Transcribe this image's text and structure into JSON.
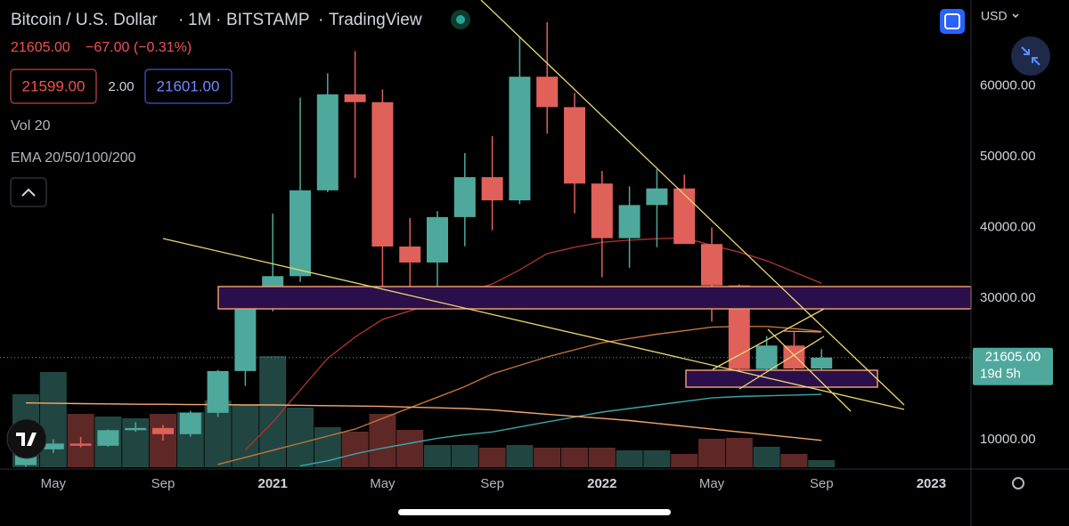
{
  "header": {
    "symbol": "Bitcoin / U.S. Dollar",
    "interval": "1M",
    "exchange": "BITSTAMP",
    "source": "TradingView",
    "price": "21605.00",
    "change": "−67.00 (−0.31%)",
    "bid": "21599.00",
    "spread": "2.00",
    "ask": "21601.00",
    "volume_legend": "Vol 20",
    "ema_legend": "EMA 20/50/100/200",
    "currency": "USD"
  },
  "chart_data": {
    "type": "candlestick",
    "categories": [
      null,
      "May",
      null,
      null,
      null,
      "Sep",
      null,
      null,
      null,
      "2021",
      null,
      null,
      null,
      "May",
      null,
      null,
      null,
      "Sep",
      null,
      null,
      null,
      "2022",
      null,
      null,
      null,
      "May",
      null,
      null,
      null,
      "Sep",
      null,
      null,
      null,
      "2023"
    ],
    "open": [
      6400,
      8630,
      9450,
      9140,
      11340,
      11650,
      10780,
      13790,
      19700,
      28990,
      33110,
      45240,
      58800,
      57700,
      37300,
      35040,
      41460,
      47100,
      43820,
      61300,
      57000,
      46200,
      38480,
      43160,
      45510,
      37650,
      31800,
      19980,
      23300,
      20050,
      null,
      null,
      null,
      null
    ],
    "high": [
      9460,
      10060,
      10380,
      11430,
      12470,
      12070,
      14100,
      19860,
      29300,
      41950,
      58350,
      61780,
      64900,
      59500,
      41330,
      42300,
      50500,
      52900,
      67000,
      69000,
      59000,
      47990,
      45800,
      48200,
      47450,
      40000,
      31950,
      24650,
      25200,
      22800,
      null,
      null,
      null,
      null
    ],
    "low": [
      6150,
      8120,
      8900,
      8980,
      11130,
      9880,
      10420,
      13230,
      17600,
      28130,
      32300,
      45000,
      47000,
      30000,
      28800,
      29280,
      37330,
      39600,
      43300,
      53250,
      42000,
      32950,
      34300,
      37200,
      37700,
      26700,
      17600,
      18800,
      19600,
      18500,
      null,
      null,
      null,
      null
    ],
    "close": [
      8630,
      9450,
      9140,
      11340,
      11650,
      10780,
      13790,
      19700,
      28990,
      33110,
      45240,
      58800,
      57700,
      37300,
      35040,
      41460,
      47100,
      43820,
      61300,
      57000,
      46200,
      38480,
      43160,
      45510,
      37650,
      31800,
      19980,
      23300,
      20050,
      21605,
      null,
      null,
      null,
      null
    ],
    "volume": [
      328000,
      428000,
      240000,
      228000,
      220000,
      240000,
      248000,
      300000,
      280000,
      500000,
      268000,
      180000,
      160000,
      240000,
      168000,
      100000,
      100000,
      88000,
      100000,
      88000,
      88000,
      88000,
      76000,
      76000,
      60000,
      128000,
      132000,
      92000,
      60000,
      32000,
      null,
      null,
      null,
      null
    ],
    "volume_lim": [
      0,
      660000
    ],
    "up_color": "#4fa89c",
    "down_color": "#e0605a",
    "ema": [
      {
        "color": "#a8322e",
        "values": [
          null,
          null,
          null,
          null,
          null,
          null,
          null,
          null,
          8500,
          12500,
          17000,
          21500,
          24500,
          27000,
          28200,
          29500,
          30800,
          32000,
          34000,
          36300,
          37200,
          37900,
          38200,
          38400,
          38500,
          37500,
          36500,
          35300,
          33700,
          32100,
          null,
          null,
          null,
          null
        ]
      },
      {
        "color": "#c4743c",
        "values": [
          null,
          null,
          null,
          null,
          null,
          null,
          null,
          6500,
          7500,
          8500,
          9500,
          10500,
          11500,
          13000,
          14500,
          16000,
          17500,
          19300,
          20500,
          21700,
          22700,
          23700,
          24300,
          24900,
          25400,
          25900,
          26000,
          26000,
          25700,
          25300,
          null,
          null,
          null,
          null
        ]
      },
      {
        "color": "#3aa7a8",
        "values": [
          null,
          null,
          null,
          null,
          null,
          null,
          null,
          null,
          null,
          null,
          6300,
          7000,
          8000,
          8800,
          9500,
          10200,
          10700,
          11100,
          11800,
          12500,
          13200,
          13900,
          14400,
          14900,
          15400,
          15900,
          16100,
          16200,
          16300,
          16400,
          null,
          null,
          null,
          null
        ]
      },
      {
        "color": "#f6a86a",
        "values": [
          15200,
          15150,
          15100,
          15050,
          15000,
          15000,
          14950,
          14950,
          14900,
          14900,
          14850,
          14800,
          14750,
          14700,
          14600,
          14500,
          14400,
          14200,
          13900,
          13600,
          13300,
          13000,
          12700,
          12300,
          11900,
          11500,
          11100,
          10700,
          10300,
          9900,
          null,
          null,
          null,
          null
        ]
      }
    ],
    "ylim": [
      6100,
      72140
    ],
    "yticks": [
      {
        "value": 10000,
        "label": "10000.00"
      },
      {
        "value": 30000,
        "label": "30000.00"
      },
      {
        "value": 40000,
        "label": "40000.00"
      },
      {
        "value": 50000,
        "label": "50000.00"
      },
      {
        "value": 60000,
        "label": "60000.00"
      }
    ],
    "last_label": "21605.00",
    "countdown": "19d 5h"
  }
}
